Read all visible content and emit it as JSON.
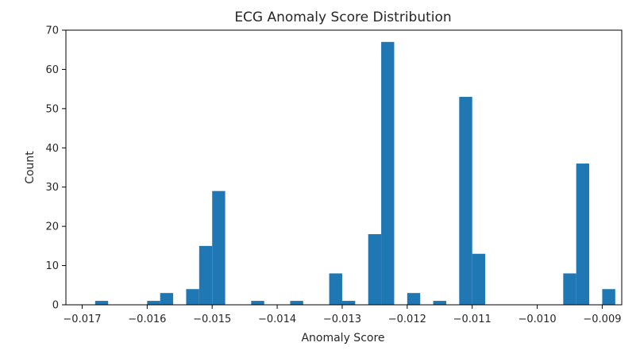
{
  "chart_data": {
    "type": "bar",
    "title": "ECG Anomaly Score Distribution",
    "xlabel": "Anomaly Score",
    "ylabel": "Count",
    "xlim": [
      -0.01725,
      -0.0087
    ],
    "ylim": [
      0,
      70
    ],
    "bin_width": 0.0002,
    "bar_color": "#1f77b4",
    "x_ticks": [
      -0.017,
      -0.016,
      -0.015,
      -0.014,
      -0.013,
      -0.012,
      -0.011,
      -0.01,
      -0.009
    ],
    "x_tick_labels": [
      "−0.017",
      "−0.016",
      "−0.015",
      "−0.014",
      "−0.013",
      "−0.012",
      "−0.011",
      "−0.010",
      "−0.009"
    ],
    "y_ticks": [
      0,
      10,
      20,
      30,
      40,
      50,
      60,
      70
    ],
    "y_tick_labels": [
      "0",
      "10",
      "20",
      "30",
      "40",
      "50",
      "60",
      "70"
    ],
    "bins": [
      {
        "x0": -0.0168,
        "x1": -0.0166,
        "count": 1
      },
      {
        "x0": -0.016,
        "x1": -0.0158,
        "count": 1
      },
      {
        "x0": -0.0158,
        "x1": -0.0156,
        "count": 3
      },
      {
        "x0": -0.0154,
        "x1": -0.0152,
        "count": 4
      },
      {
        "x0": -0.0152,
        "x1": -0.015,
        "count": 15
      },
      {
        "x0": -0.015,
        "x1": -0.0148,
        "count": 29
      },
      {
        "x0": -0.0144,
        "x1": -0.0142,
        "count": 1
      },
      {
        "x0": -0.0138,
        "x1": -0.0136,
        "count": 1
      },
      {
        "x0": -0.0132,
        "x1": -0.013,
        "count": 8
      },
      {
        "x0": -0.013,
        "x1": -0.0128,
        "count": 1
      },
      {
        "x0": -0.0126,
        "x1": -0.0124,
        "count": 18
      },
      {
        "x0": -0.0124,
        "x1": -0.0122,
        "count": 67
      },
      {
        "x0": -0.012,
        "x1": -0.0118,
        "count": 3
      },
      {
        "x0": -0.0116,
        "x1": -0.0114,
        "count": 1
      },
      {
        "x0": -0.0112,
        "x1": -0.011,
        "count": 53
      },
      {
        "x0": -0.011,
        "x1": -0.0108,
        "count": 13
      },
      {
        "x0": -0.0096,
        "x1": -0.0094,
        "count": 8
      },
      {
        "x0": -0.0094,
        "x1": -0.0092,
        "count": 36
      },
      {
        "x0": -0.009,
        "x1": -0.0088,
        "count": 4
      }
    ]
  }
}
